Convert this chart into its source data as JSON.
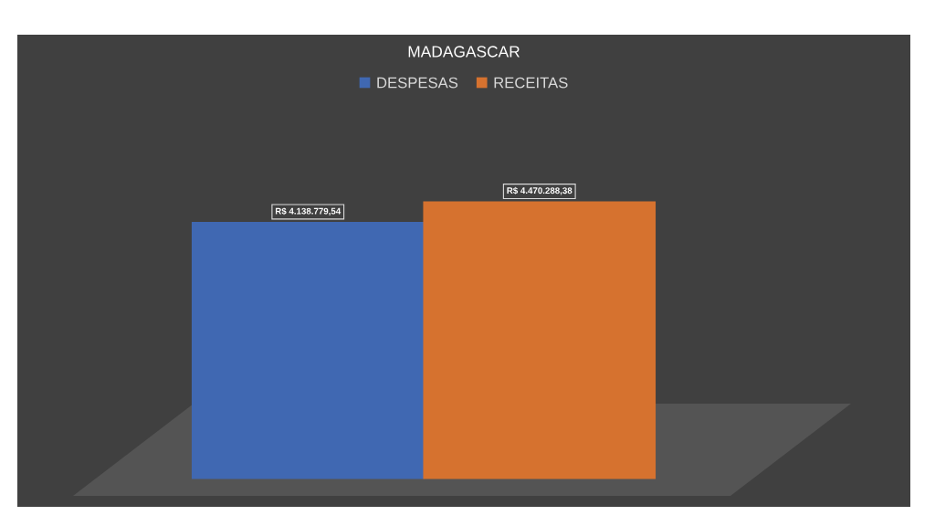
{
  "chart_data": {
    "type": "bar",
    "title": "MADAGASCAR",
    "categories": [
      null
    ],
    "series": [
      {
        "name": "DESPESAS",
        "color": "#4068b2",
        "values": [
          4138779.54
        ],
        "value_labels": [
          "R$ 4.138.779,54"
        ]
      },
      {
        "name": "RECEITAS",
        "color": "#d6722f",
        "values": [
          4470288.38
        ],
        "value_labels": [
          "R$ 4.470.288,38"
        ]
      }
    ],
    "tick_labels": false,
    "legend": "top"
  }
}
